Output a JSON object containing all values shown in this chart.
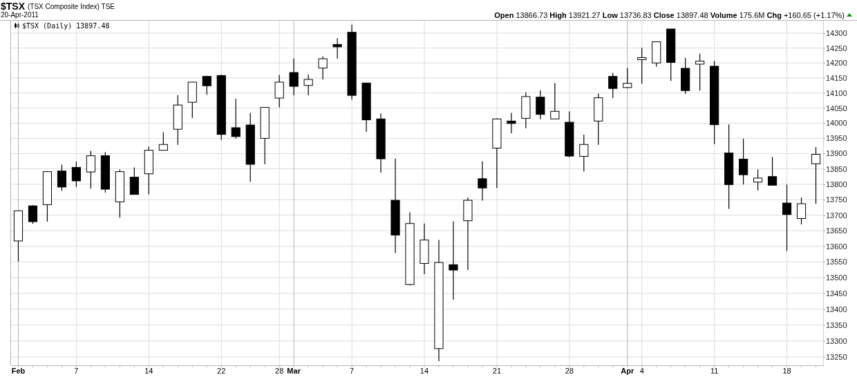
{
  "chart_data": {
    "type": "candlestick",
    "title": "$TSX",
    "subtitle": "(TSX Composite Index) TSE",
    "annotations": [
      "20-Apr-2011",
      "Open 13866.73 High 13921.27 Low 13736.83 Close 13897.48 Volume 175.6M Chg +160.65 (+1.17%)"
    ],
    "categories": [
      "Feb",
      null,
      null,
      null,
      "7",
      null,
      null,
      null,
      null,
      "14",
      null,
      null,
      null,
      null,
      "22",
      null,
      null,
      null,
      "28",
      "Mar",
      null,
      null,
      null,
      "7",
      null,
      null,
      null,
      null,
      "14",
      null,
      null,
      null,
      null,
      "21",
      null,
      null,
      null,
      null,
      "28",
      null,
      null,
      null,
      "Apr",
      "4",
      null,
      null,
      null,
      null,
      "11",
      null,
      null,
      null,
      null,
      "18",
      null,
      null
    ],
    "series": [
      {
        "name": "$TSX (Daily) 13897.48",
        "color": "#000000",
        "ohlc": [
          [
            13617,
            13714,
            13551,
            13714
          ],
          [
            13730,
            13732,
            13672,
            13679
          ],
          [
            13734,
            13843,
            13679,
            13841
          ],
          [
            13843,
            13864,
            13778,
            13791
          ],
          [
            13855,
            13874,
            13791,
            13811
          ],
          [
            13840,
            13909,
            13786,
            13893
          ],
          [
            13893,
            13905,
            13773,
            13784
          ],
          [
            13743,
            13848,
            13692,
            13841
          ],
          [
            13823,
            13855,
            13767,
            13767
          ],
          [
            13834,
            13923,
            13767,
            13911
          ],
          [
            13911,
            13970,
            13911,
            13930
          ],
          [
            13980,
            14093,
            13929,
            14060
          ],
          [
            14069,
            14136,
            14017,
            14136
          ],
          [
            14155,
            14157,
            14094,
            14124
          ],
          [
            14158,
            14161,
            13945,
            13963
          ],
          [
            13985,
            14081,
            13949,
            13956
          ],
          [
            13994,
            14034,
            13808,
            13865
          ],
          [
            13950,
            14052,
            13865,
            14052
          ],
          [
            14083,
            14160,
            14052,
            14136
          ],
          [
            14168,
            14215,
            14092,
            14122
          ],
          [
            14125,
            14161,
            14092,
            14145
          ],
          [
            14183,
            14222,
            14145,
            14214
          ],
          [
            14262,
            14283,
            14214,
            14254
          ],
          [
            14303,
            14328,
            14078,
            14092
          ],
          [
            14133,
            14133,
            13972,
            14011
          ],
          [
            14014,
            14032,
            13838,
            13883
          ],
          [
            13748,
            13884,
            13578,
            13636
          ],
          [
            13478,
            13709,
            13475,
            13673
          ],
          [
            13545,
            13673,
            13511,
            13620
          ],
          [
            13276,
            13620,
            13237,
            13548
          ],
          [
            13541,
            13680,
            13430,
            13524
          ],
          [
            13682,
            13757,
            13524,
            13748
          ],
          [
            13818,
            13875,
            13747,
            13788
          ],
          [
            13918,
            14016,
            13788,
            14014
          ],
          [
            14007,
            14034,
            13967,
            13999
          ],
          [
            14016,
            14102,
            13983,
            14088
          ],
          [
            14086,
            14109,
            14013,
            14029
          ],
          [
            14014,
            14133,
            14014,
            14039
          ],
          [
            14003,
            14039,
            13888,
            13892
          ],
          [
            13891,
            13962,
            13842,
            13930
          ],
          [
            14007,
            14098,
            13929,
            14084
          ],
          [
            14155,
            14167,
            14083,
            14115
          ],
          [
            14118,
            14183,
            14115,
            14132
          ],
          [
            14211,
            14251,
            14131,
            14218
          ],
          [
            14200,
            14271,
            14188,
            14271
          ],
          [
            14314,
            14314,
            14140,
            14202
          ],
          [
            14182,
            14217,
            14097,
            14108
          ],
          [
            14196,
            14231,
            14108,
            14206
          ],
          [
            14189,
            14207,
            13931,
            13995
          ],
          [
            13902,
            13996,
            13720,
            13799
          ],
          [
            13882,
            13949,
            13799,
            13831
          ],
          [
            13807,
            13848,
            13780,
            13820
          ],
          [
            13825,
            13889,
            13797,
            13797
          ],
          [
            13739,
            13799,
            13585,
            13702
          ],
          [
            13689,
            13757,
            13670,
            13737
          ],
          [
            13866.73,
            13921.27,
            13736.83,
            13897.48
          ]
        ]
      }
    ],
    "ylim": [
      13224,
      14342
    ],
    "yticks": [
      13250,
      13300,
      13350,
      13400,
      13450,
      13500,
      13550,
      13600,
      13650,
      13700,
      13750,
      13800,
      13850,
      13900,
      13950,
      14000,
      14050,
      14100,
      14150,
      14200,
      14250,
      14300
    ],
    "log": true,
    "grid": true,
    "legend": "top left"
  }
}
